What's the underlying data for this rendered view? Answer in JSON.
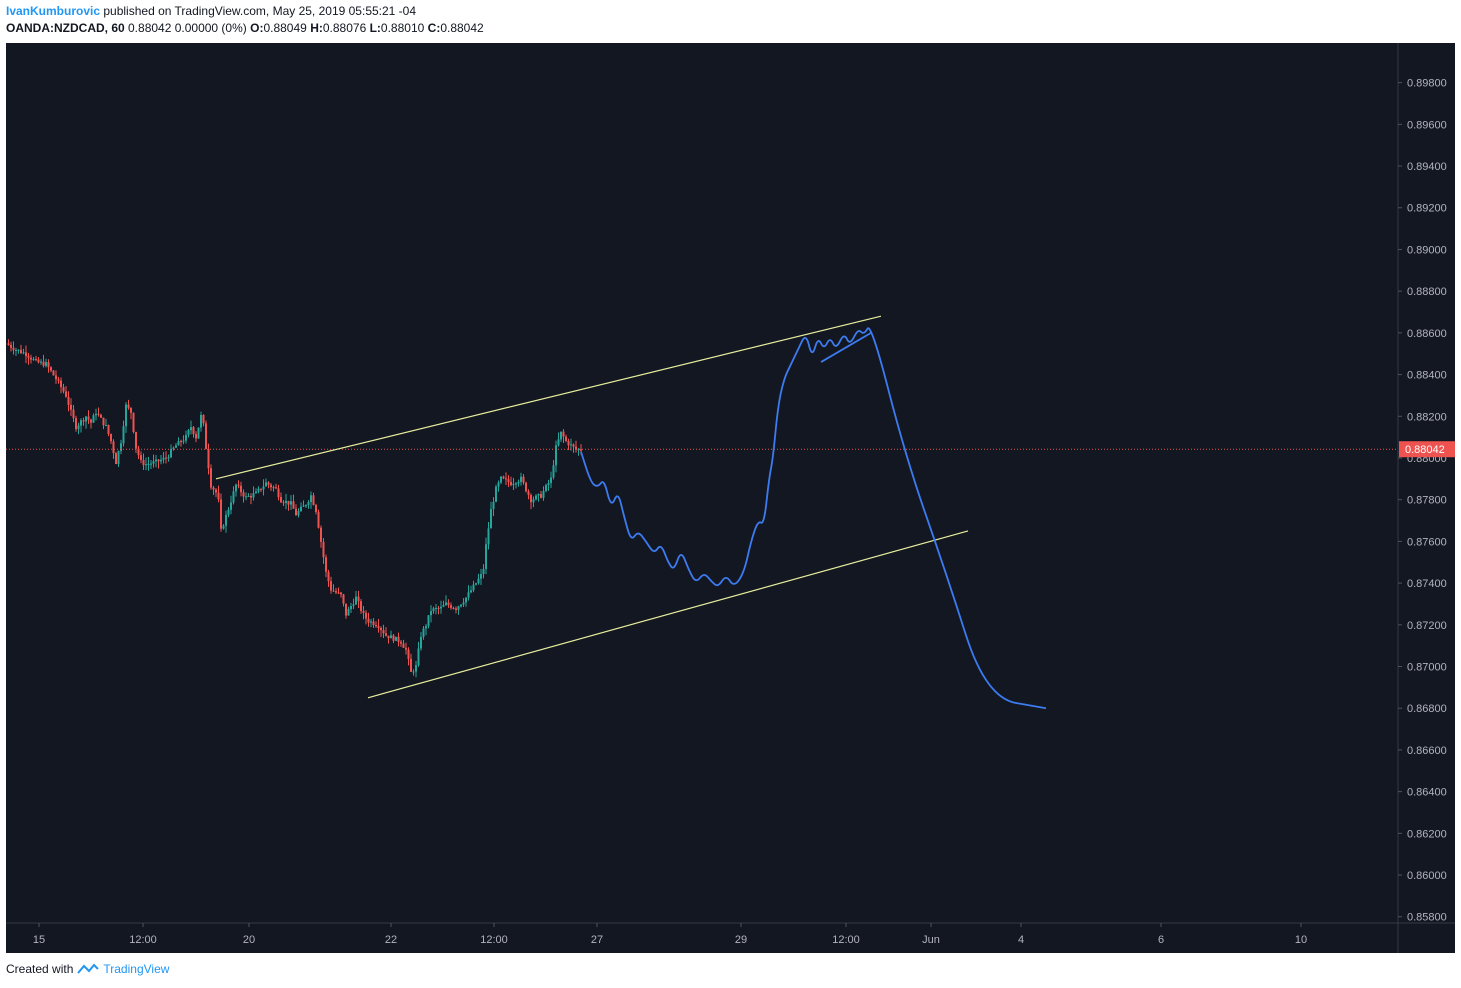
{
  "header": {
    "author": "IvanKumburovic",
    "published_text": " published on TradingView.com, May 25, 2019 05:55:21 -04",
    "symbol": "OANDA:NZDCAD, 60",
    "quote": " 0.88042 0.00000 (0%) ",
    "ohlc": [
      {
        "label": "O:",
        "value": "0.88049"
      },
      {
        "label": "H:",
        "value": "0.88076"
      },
      {
        "label": "L:",
        "value": "0.88010"
      },
      {
        "label": "C:",
        "value": "0.88042"
      }
    ]
  },
  "footer": {
    "created_with": "Created with",
    "brand": "TradingView"
  },
  "colors": {
    "background": "#131722",
    "up": "#26a69a",
    "down": "#ef5350",
    "channel": "#e6ee9c",
    "projection": "#2962ff",
    "price_line": "#ef5350",
    "axis_text": "#b2b5be"
  },
  "chart_data": {
    "type": "candlestick",
    "symbol": "OANDA:NZDCAD",
    "interval": "60",
    "ylim": [
      0.8577,
      0.8999
    ],
    "y_ticks": [
      "0.89800",
      "0.89600",
      "0.89400",
      "0.89200",
      "0.89000",
      "0.88800",
      "0.88600",
      "0.88400",
      "0.88200",
      "0.88000",
      "0.87800",
      "0.87600",
      "0.87400",
      "0.87200",
      "0.87000",
      "0.86800",
      "0.86600",
      "0.86400",
      "0.86200",
      "0.86000",
      "0.85800"
    ],
    "x_ticks": [
      "15",
      "12:00",
      "20",
      "22",
      "12:00",
      "27",
      "29",
      "12:00",
      "Jun",
      "4",
      "6",
      "10"
    ],
    "current_price": "0.88042",
    "price_path": [
      [
        0,
        0.8855
      ],
      [
        10,
        0.8852
      ],
      [
        20,
        0.885
      ],
      [
        30,
        0.8846
      ],
      [
        40,
        0.8845
      ],
      [
        50,
        0.8838
      ],
      [
        60,
        0.883
      ],
      [
        65,
        0.8822
      ],
      [
        70,
        0.8815
      ],
      [
        80,
        0.882
      ],
      [
        85,
        0.8817
      ],
      [
        90,
        0.8822
      ],
      [
        100,
        0.8815
      ],
      [
        105,
        0.8808
      ],
      [
        110,
        0.8798
      ],
      [
        115,
        0.8808
      ],
      [
        120,
        0.8825
      ],
      [
        125,
        0.8822
      ],
      [
        130,
        0.8805
      ],
      [
        135,
        0.8798
      ],
      [
        140,
        0.8797
      ],
      [
        150,
        0.8798
      ],
      [
        160,
        0.88
      ],
      [
        170,
        0.8806
      ],
      [
        180,
        0.881
      ],
      [
        185,
        0.8815
      ],
      [
        190,
        0.881
      ],
      [
        196,
        0.8822
      ],
      [
        200,
        0.8805
      ],
      [
        205,
        0.8787
      ],
      [
        212,
        0.8782
      ],
      [
        215,
        0.8765
      ],
      [
        222,
        0.8775
      ],
      [
        230,
        0.8787
      ],
      [
        240,
        0.8781
      ],
      [
        250,
        0.8783
      ],
      [
        260,
        0.8788
      ],
      [
        270,
        0.8785
      ],
      [
        275,
        0.878
      ],
      [
        285,
        0.8778
      ],
      [
        290,
        0.8773
      ],
      [
        300,
        0.8778
      ],
      [
        305,
        0.8782
      ],
      [
        310,
        0.8775
      ],
      [
        315,
        0.876
      ],
      [
        320,
        0.8745
      ],
      [
        325,
        0.8737
      ],
      [
        335,
        0.8734
      ],
      [
        340,
        0.8725
      ],
      [
        345,
        0.8729
      ],
      [
        350,
        0.8733
      ],
      [
        357,
        0.8725
      ],
      [
        362,
        0.8722
      ],
      [
        372,
        0.872
      ],
      [
        380,
        0.8715
      ],
      [
        390,
        0.8713
      ],
      [
        395,
        0.8712
      ],
      [
        400,
        0.8708
      ],
      [
        405,
        0.8697
      ],
      [
        410,
        0.87
      ],
      [
        415,
        0.8715
      ],
      [
        420,
        0.872
      ],
      [
        425,
        0.8727
      ],
      [
        435,
        0.8728
      ],
      [
        440,
        0.873
      ],
      [
        450,
        0.8728
      ],
      [
        460,
        0.8733
      ],
      [
        470,
        0.874
      ],
      [
        477,
        0.8745
      ],
      [
        480,
        0.8758
      ],
      [
        485,
        0.8775
      ],
      [
        490,
        0.8785
      ],
      [
        495,
        0.879
      ],
      [
        505,
        0.8788
      ],
      [
        515,
        0.879
      ],
      [
        520,
        0.8785
      ],
      [
        525,
        0.878
      ],
      [
        535,
        0.8782
      ],
      [
        545,
        0.879
      ],
      [
        550,
        0.8805
      ],
      [
        555,
        0.8812
      ],
      [
        560,
        0.8808
      ],
      [
        565,
        0.8806
      ],
      [
        570,
        0.8804
      ],
      [
        575,
        0.8804
      ]
    ],
    "channel_upper": [
      [
        210,
        0.879
      ],
      [
        875,
        0.8868
      ]
    ],
    "channel_lower": [
      [
        362,
        0.8685
      ],
      [
        962,
        0.8765
      ]
    ],
    "projection_path": [
      [
        575,
        0.8803
      ],
      [
        585,
        0.8788
      ],
      [
        592,
        0.8786
      ],
      [
        598,
        0.879
      ],
      [
        605,
        0.8776
      ],
      [
        612,
        0.8784
      ],
      [
        618,
        0.8772
      ],
      [
        625,
        0.876
      ],
      [
        632,
        0.8765
      ],
      [
        640,
        0.876
      ],
      [
        648,
        0.8754
      ],
      [
        655,
        0.8759
      ],
      [
        662,
        0.875
      ],
      [
        668,
        0.8746
      ],
      [
        675,
        0.8756
      ],
      [
        683,
        0.8746
      ],
      [
        690,
        0.874
      ],
      [
        698,
        0.8745
      ],
      [
        705,
        0.8741
      ],
      [
        712,
        0.8738
      ],
      [
        720,
        0.8744
      ],
      [
        728,
        0.8738
      ],
      [
        738,
        0.8745
      ],
      [
        745,
        0.876
      ],
      [
        752,
        0.877
      ],
      [
        758,
        0.8768
      ],
      [
        763,
        0.879
      ],
      [
        767,
        0.88
      ],
      [
        772,
        0.8825
      ],
      [
        778,
        0.8838
      ],
      [
        785,
        0.8845
      ],
      [
        792,
        0.8852
      ],
      [
        800,
        0.886
      ],
      [
        806,
        0.8848
      ],
      [
        812,
        0.8858
      ],
      [
        818,
        0.8852
      ],
      [
        824,
        0.8858
      ],
      [
        830,
        0.8852
      ],
      [
        838,
        0.886
      ],
      [
        844,
        0.8854
      ],
      [
        852,
        0.8862
      ],
      [
        858,
        0.8859
      ],
      [
        865,
        0.8865
      ],
      [
        900,
        0.88
      ],
      [
        940,
        0.8745
      ],
      [
        980,
        0.8685
      ],
      [
        1040,
        0.868
      ]
    ],
    "triangle_line": [
      [
        815,
        0.8846
      ],
      [
        865,
        0.886
      ]
    ]
  }
}
